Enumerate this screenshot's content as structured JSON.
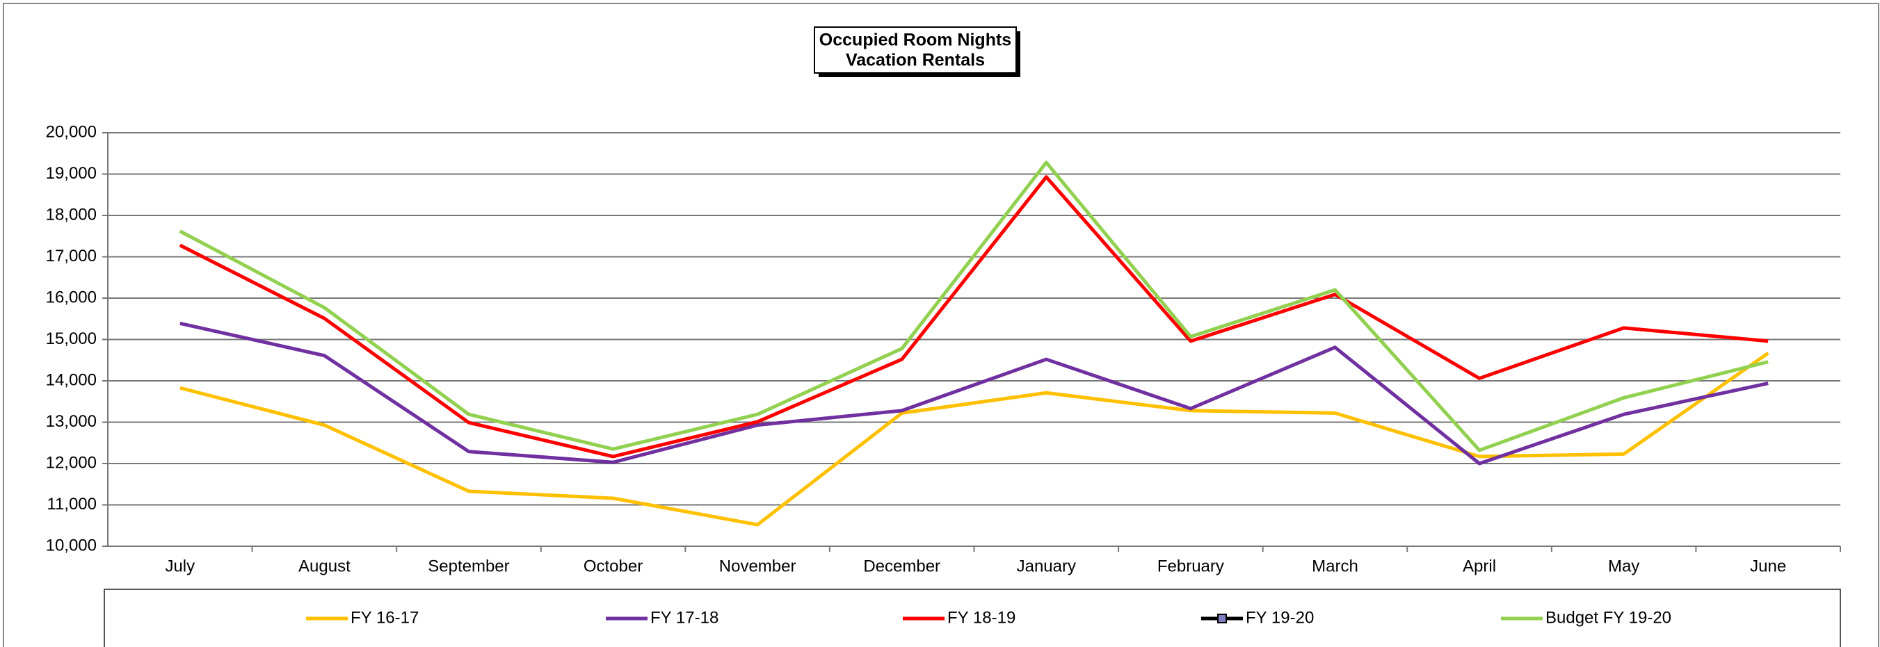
{
  "chart_data": {
    "type": "line",
    "title": "Occupied Room Nights",
    "subtitle": "Vacation Rentals",
    "categories": [
      "July",
      "August",
      "September",
      "October",
      "November",
      "December",
      "January",
      "February",
      "March",
      "April",
      "May",
      "June"
    ],
    "series": [
      {
        "name": "FY 16-17",
        "color": "#ffc000",
        "values": [
          13830,
          12930,
          11330,
          11160,
          10520,
          13220,
          13710,
          13280,
          13220,
          12170,
          12230,
          14670
        ]
      },
      {
        "name": "FY 17-18",
        "color": "#7030a0",
        "values": [
          15390,
          14610,
          12290,
          12030,
          12930,
          13280,
          14520,
          13330,
          14810,
          12000,
          13190,
          13940
        ]
      },
      {
        "name": "FY 18-19",
        "color": "#ff0000",
        "values": [
          17280,
          15510,
          12990,
          12170,
          13010,
          14520,
          18930,
          14960,
          16090,
          14060,
          15280,
          14960
        ]
      },
      {
        "name": "FY 19-20",
        "color": "#000000",
        "marker": "square",
        "marker_color": "#8080c0",
        "values": [
          null,
          null,
          null,
          null,
          null,
          null,
          null,
          null,
          null,
          null,
          null,
          null
        ]
      },
      {
        "name": "Budget FY 19-20",
        "color": "#92d050",
        "values": [
          17620,
          15770,
          13190,
          12350,
          13190,
          14780,
          19280,
          15070,
          16200,
          12320,
          13590,
          14460
        ]
      }
    ],
    "ylim": [
      10000,
      20000
    ],
    "yticks": [
      {
        "value": 10000,
        "label": "10,000"
      },
      {
        "value": 11000,
        "label": "11,000"
      },
      {
        "value": 12000,
        "label": "12,000"
      },
      {
        "value": 13000,
        "label": "13,000"
      },
      {
        "value": 14000,
        "label": "14,000"
      },
      {
        "value": 15000,
        "label": "15,000"
      },
      {
        "value": 16000,
        "label": "16,000"
      },
      {
        "value": 17000,
        "label": "17,000"
      },
      {
        "value": 18000,
        "label": "18,000"
      },
      {
        "value": 19000,
        "label": "19,000"
      },
      {
        "value": 20000,
        "label": "20,000"
      }
    ],
    "grid": true,
    "legend": "bottom"
  }
}
